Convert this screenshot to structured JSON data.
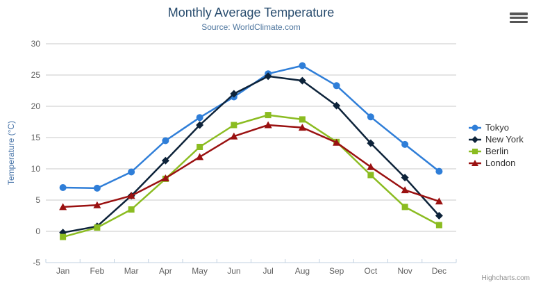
{
  "chart_data": {
    "type": "line",
    "title": "Monthly Average Temperature",
    "subtitle": "Source: WorldClimate.com",
    "categories": [
      "Jan",
      "Feb",
      "Mar",
      "Apr",
      "May",
      "Jun",
      "Jul",
      "Aug",
      "Sep",
      "Oct",
      "Nov",
      "Dec"
    ],
    "series": [
      {
        "name": "Tokyo",
        "color": "#2f7ed8",
        "marker": "circle",
        "values": [
          7.0,
          6.9,
          9.5,
          14.5,
          18.2,
          21.5,
          25.2,
          26.5,
          23.3,
          18.3,
          13.9,
          9.6
        ]
      },
      {
        "name": "New York",
        "color": "#0d233a",
        "marker": "diamond",
        "values": [
          -0.2,
          0.8,
          5.7,
          11.3,
          17.0,
          22.0,
          24.8,
          24.1,
          20.1,
          14.1,
          8.6,
          2.5
        ]
      },
      {
        "name": "Berlin",
        "color": "#8bbc21",
        "marker": "square",
        "values": [
          -0.9,
          0.6,
          3.5,
          8.4,
          13.5,
          17.0,
          18.6,
          17.9,
          14.3,
          9.0,
          3.9,
          1.0
        ]
      },
      {
        "name": "London",
        "color": "#9a1111",
        "marker": "triangle",
        "values": [
          3.9,
          4.2,
          5.7,
          8.5,
          11.9,
          15.2,
          17.0,
          16.6,
          14.2,
          10.3,
          6.6,
          4.8
        ]
      }
    ],
    "xlabel": "",
    "ylabel": "Temperature (°C)",
    "ylim": [
      -5,
      30
    ],
    "ytick_step": 5,
    "grid": true,
    "legend_position": "right",
    "axis_colors": {
      "grid_line": "#c8c8c8",
      "x_axis_line": "#c0d0e0",
      "tick_label": "#606060"
    }
  },
  "credits": {
    "label": "Highcharts.com"
  },
  "export_menu": {
    "icon": "hamburger-menu-icon"
  }
}
